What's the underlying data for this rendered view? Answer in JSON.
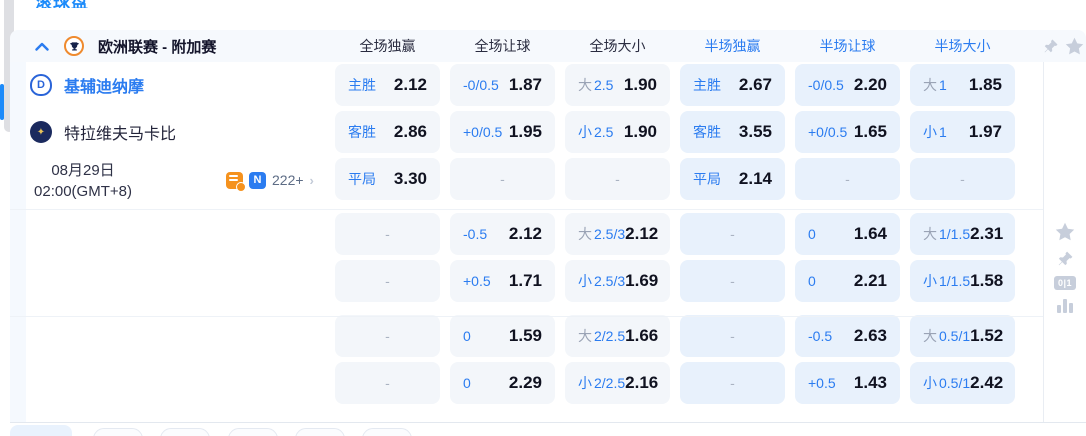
{
  "top": {
    "clipped_text": "滚球盘"
  },
  "league": {
    "title": "欧洲联赛 - 附加赛",
    "columns": [
      {
        "label": "全场独赢"
      },
      {
        "label": "全场让球"
      },
      {
        "label": "全场大小"
      },
      {
        "label": "半场独赢"
      },
      {
        "label": "半场让球"
      },
      {
        "label": "半场大小"
      }
    ]
  },
  "match": {
    "home_team": "基辅迪纳摩",
    "home_initial": "D",
    "away_team": "特拉维夫马卡比",
    "away_mark": "✦",
    "date": "08月29日",
    "time": "02:00(GMT+8)",
    "markets_count": "222+",
    "more_arrow": "›",
    "n_badge": "N"
  },
  "tools": {
    "score_badge": "0|1"
  },
  "colors": {
    "accent_blue": "#2b7cf0",
    "full_cell_bg": "#f3f6fa",
    "half_cell_bg": "#e8f1fc",
    "muted_gray": "#9aa3b5",
    "icon_gray": "#c7cedb",
    "orange": "#f5921e"
  },
  "odds": {
    "blocks": [
      {
        "rows": [
          [
            {
              "label": "主胜",
              "value": "2.12"
            },
            {
              "label": "-0/0.5",
              "value": "1.87"
            },
            {
              "prefix": "大",
              "line": "2.5",
              "value": "1.90"
            },
            {
              "label": "主胜",
              "value": "2.67"
            },
            {
              "label": "-0/0.5",
              "value": "2.20"
            },
            {
              "prefix": "大",
              "line": "1",
              "value": "1.85"
            }
          ],
          [
            {
              "label": "客胜",
              "value": "2.86"
            },
            {
              "label": "+0/0.5",
              "value": "1.95"
            },
            {
              "prefix": "小",
              "line": "2.5",
              "value": "1.90"
            },
            {
              "label": "客胜",
              "value": "3.55"
            },
            {
              "label": "+0/0.5",
              "value": "1.65"
            },
            {
              "prefix": "小",
              "line": "1",
              "value": "1.97"
            }
          ],
          [
            {
              "label": "平局",
              "value": "3.30"
            },
            {
              "dash": true
            },
            {
              "dash": true
            },
            {
              "label": "平局",
              "value": "2.14"
            },
            {
              "dash": true
            },
            {
              "dash": true
            }
          ]
        ]
      },
      {
        "rows": [
          [
            {
              "dash": true
            },
            {
              "label": "-0.5",
              "value": "2.12"
            },
            {
              "prefix": "大",
              "line": "2.5/3",
              "value": "2.12"
            },
            {
              "dash": true
            },
            {
              "label": "0",
              "value": "1.64"
            },
            {
              "prefix": "大",
              "line": "1/1.5",
              "value": "2.31"
            }
          ],
          [
            {
              "dash": true
            },
            {
              "label": "+0.5",
              "value": "1.71"
            },
            {
              "prefix": "小",
              "line": "2.5/3",
              "value": "1.69"
            },
            {
              "dash": true
            },
            {
              "label": "0",
              "value": "2.21"
            },
            {
              "prefix": "小",
              "line": "1/1.5",
              "value": "1.58"
            }
          ]
        ]
      },
      {
        "rows": [
          [
            {
              "dash": true
            },
            {
              "label": "0",
              "value": "1.59"
            },
            {
              "prefix": "大",
              "line": "2/2.5",
              "value": "1.66"
            },
            {
              "dash": true
            },
            {
              "label": "-0.5",
              "value": "2.63"
            },
            {
              "prefix": "大",
              "line": "0.5/1",
              "value": "1.52"
            }
          ],
          [
            {
              "dash": true
            },
            {
              "label": "0",
              "value": "2.29"
            },
            {
              "prefix": "小",
              "line": "2/2.5",
              "value": "2.16"
            },
            {
              "dash": true
            },
            {
              "label": "+0.5",
              "value": "1.43"
            },
            {
              "prefix": "小",
              "line": "0.5/1",
              "value": "2.42"
            }
          ]
        ]
      }
    ]
  }
}
